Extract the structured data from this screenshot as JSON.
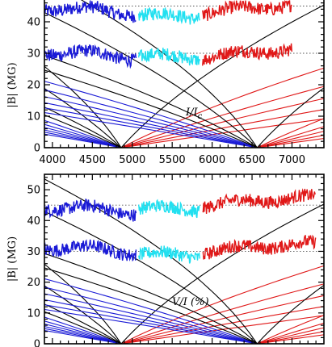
{
  "chart_data": [
    {
      "type": "line",
      "panel_label": "I/I",
      "panel_label_sub": "c",
      "ylabel": "|B| (MG)",
      "xlim": [
        3900,
        7400
      ],
      "ylim": [
        0,
        50
      ],
      "xticks": [
        4000,
        4500,
        5000,
        5500,
        6000,
        6500,
        7000
      ],
      "yticks": [
        0,
        10,
        20,
        30,
        40
      ],
      "reference_lines_B": [
        30,
        45
      ],
      "field_traces": [
        {
          "color": "#1a1ad6",
          "x_range": [
            3900,
            5050
          ],
          "B_levels": [
            43,
            29
          ]
        },
        {
          "color": "#22e0f0",
          "x_range": [
            5080,
            5850
          ],
          "B_levels": [
            43,
            30
          ]
        },
        {
          "color": "#e01818",
          "x_range": [
            5880,
            7000
          ],
          "B_levels": [
            44,
            30
          ]
        }
      ]
    },
    {
      "type": "line",
      "panel_label": "V/I (%)",
      "panel_label_sub": "",
      "ylabel": "|B| (MG)",
      "xlim": [
        3900,
        7400
      ],
      "ylim": [
        0,
        55
      ],
      "xticks": [],
      "yticks": [
        0,
        10,
        20,
        30,
        40,
        50
      ],
      "reference_lines_B": [
        30,
        45
      ],
      "field_traces": [
        {
          "color": "#1a1ad6",
          "x_range": [
            3900,
            5050
          ],
          "B_levels": [
            43,
            30
          ]
        },
        {
          "color": "#22e0f0",
          "x_range": [
            5080,
            5850
          ],
          "B_levels": [
            45,
            30
          ]
        },
        {
          "color": "#e01818",
          "x_range": [
            5880,
            7300
          ],
          "B_levels": [
            46,
            31
          ]
        }
      ]
    }
  ],
  "transition_groups": [
    {
      "converge_wl": 4861,
      "colors": [
        "#1a1ad6",
        "#000000",
        "#e01818"
      ]
    },
    {
      "converge_wl": 6563,
      "colors": [
        "#1a1ad6",
        "#000000",
        "#e01818"
      ]
    }
  ]
}
